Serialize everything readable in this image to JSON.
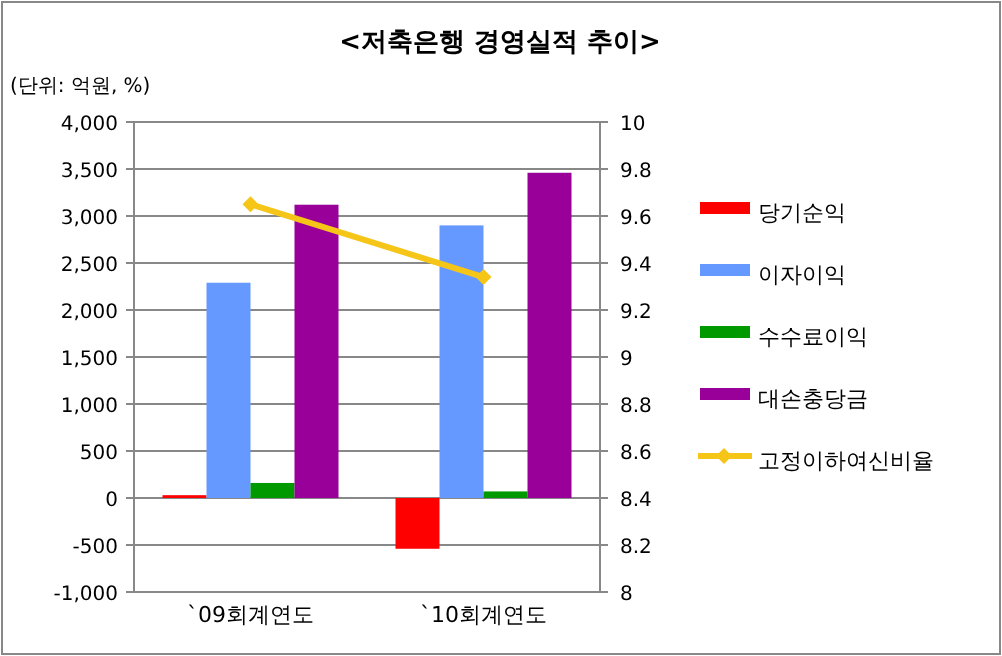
{
  "chart_data": {
    "type": "bar",
    "title": "<저축은행 경영실적 추이>",
    "annotations": [
      "(단위: 억원, %)"
    ],
    "categories": [
      "`09회계연도",
      "`10회계연도"
    ],
    "series": [
      {
        "name": "당기순익",
        "color": "#ff0000",
        "values": [
          30,
          -540
        ]
      },
      {
        "name": "이자이익",
        "color": "#6699ff",
        "values": [
          2290,
          2900
        ]
      },
      {
        "name": "수수료이익",
        "color": "#009900",
        "values": [
          160,
          70
        ]
      },
      {
        "name": "대손충당금",
        "color": "#990099",
        "values": [
          3120,
          3460
        ]
      },
      {
        "name": "고정이하여신비율",
        "type": "line",
        "axis": "y2",
        "color": "#f5c518",
        "marker": "diamond",
        "values": [
          9.65,
          9.34
        ]
      }
    ],
    "ylim": [
      -1000,
      4000
    ],
    "yticks": [
      {
        "value": -1000,
        "label": "-1,000"
      },
      -500,
      0,
      500,
      {
        "value": 1000,
        "label": "1,000"
      },
      {
        "value": 1500,
        "label": "1,500"
      },
      {
        "value": 2000,
        "label": "2,000"
      },
      {
        "value": 2500,
        "label": "2,500"
      },
      {
        "value": 3000,
        "label": "3,000"
      },
      {
        "value": 3500,
        "label": "3,500"
      },
      {
        "value": 4000,
        "label": "4,000"
      }
    ],
    "y2lim": [
      8,
      10
    ],
    "y2ticks": [
      8,
      8.2,
      8.4,
      8.6,
      8.8,
      9,
      9.2,
      9.4,
      9.6,
      9.8,
      10
    ],
    "grid": "y",
    "legend": "right"
  }
}
